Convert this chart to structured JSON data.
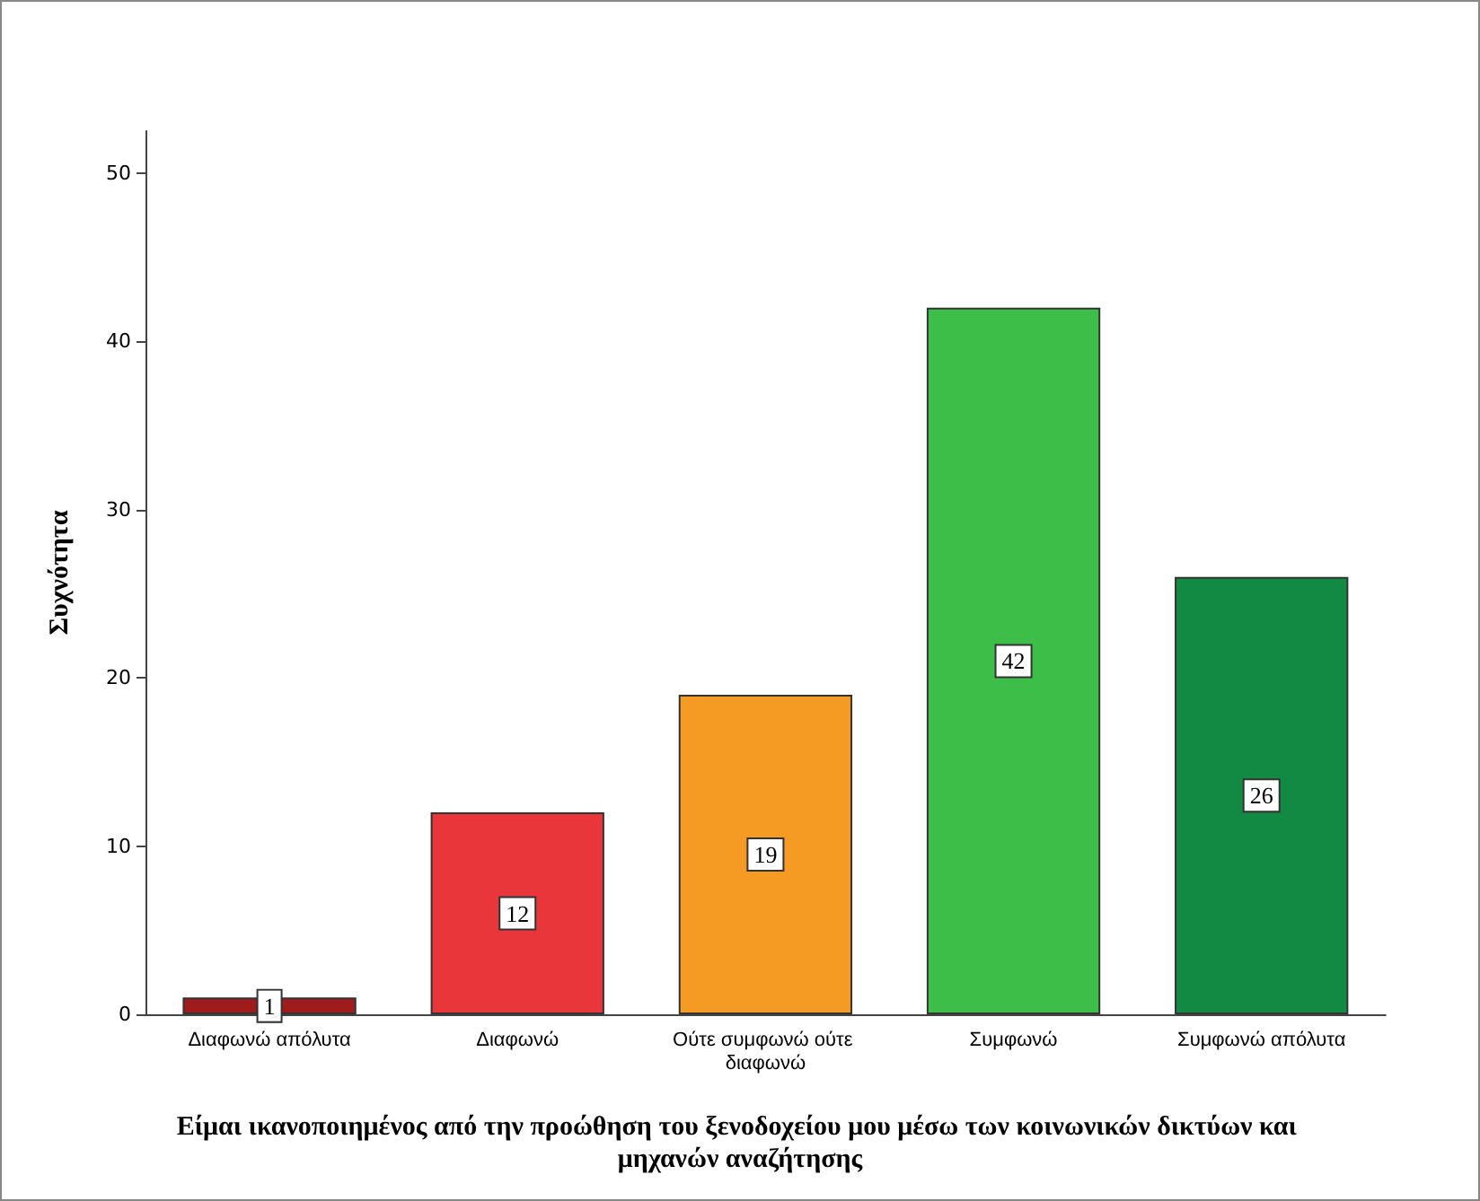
{
  "chart_data": {
    "type": "bar",
    "xlabel": "Είμαι ικανοποιημένος από την προώθηση του ξενοδοχείου μου μέσω των κοινωνικών δικτύων και μηχανών αναζήτησης",
    "ylabel": "Συχνότητα",
    "categories": [
      "Διαφωνώ απόλυτα",
      "Διαφωνώ",
      "Ούτε συμφωνώ ούτε διαφωνώ",
      "Συμφωνώ",
      "Συμφωνώ απόλυτα"
    ],
    "values": [
      1,
      12,
      19,
      42,
      26
    ],
    "colors": [
      "#a01c1c",
      "#e8363a",
      "#f59a23",
      "#3cbe48",
      "#138a43"
    ],
    "ylim": [
      0,
      52.5
    ],
    "yticks": [
      0,
      10,
      20,
      30,
      40,
      50
    ],
    "data_labels": true
  }
}
